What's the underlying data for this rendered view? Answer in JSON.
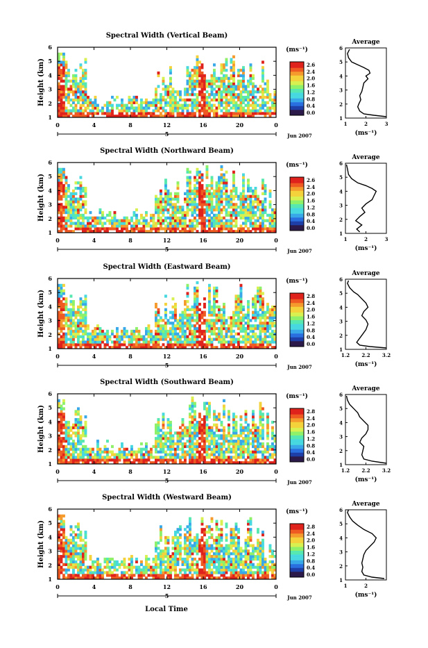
{
  "figure": {
    "time_axis_label": "Local Time",
    "cbar_unit": "(ms⁻¹)",
    "day_label": "5",
    "month_label": "Jun 2007",
    "avg_title": "Average",
    "avg_xlabel": "(ms⁻¹)",
    "height_label": "Height (km)"
  },
  "chart_data": [
    {
      "type": "heatmap",
      "title": "Spectral Width (Vertical Beam)",
      "ylabel": "Height (km)",
      "x_ticks": [
        "0",
        "4",
        "8",
        "12",
        "16",
        "20",
        "0"
      ],
      "x_range_hours": [
        0,
        24
      ],
      "y_ticks": [
        "1",
        "2",
        "3",
        "4",
        "5",
        "6"
      ],
      "ylim": [
        1,
        6
      ],
      "colorbar_ticks": [
        "2.6",
        "2.4",
        "2.0",
        "1.6",
        "1.2",
        "0.8",
        "0.4",
        "0.0"
      ],
      "colorbar_unit": "(ms⁻¹)",
      "average": {
        "title": "Average",
        "xlabel": "(ms⁻¹)",
        "x_ticks": [
          "1",
          "2",
          "3"
        ],
        "xlim": [
          1,
          3
        ],
        "y_ticks": [
          "1",
          "2",
          "3",
          "4",
          "5",
          "6"
        ],
        "ylim": [
          1,
          6
        ],
        "profile": [
          [
            3.0,
            1.1
          ],
          [
            2.4,
            1.2
          ],
          [
            1.9,
            1.3
          ],
          [
            1.7,
            1.5
          ],
          [
            1.6,
            1.8
          ],
          [
            1.65,
            2.0
          ],
          [
            1.75,
            2.3
          ],
          [
            1.7,
            2.6
          ],
          [
            1.8,
            2.9
          ],
          [
            1.85,
            3.2
          ],
          [
            1.9,
            3.5
          ],
          [
            2.1,
            3.8
          ],
          [
            2.0,
            4.0
          ],
          [
            2.2,
            4.2
          ],
          [
            2.15,
            4.4
          ],
          [
            1.9,
            4.6
          ],
          [
            1.6,
            4.8
          ],
          [
            1.3,
            5.0
          ],
          [
            1.15,
            5.3
          ],
          [
            1.1,
            5.6
          ],
          [
            1.2,
            5.9
          ]
        ]
      }
    },
    {
      "type": "heatmap",
      "title": "Spectral Width (Northward Beam)",
      "ylabel": "Height (km)",
      "x_ticks": [
        "0",
        "4",
        "8",
        "12",
        "16",
        "20",
        "0"
      ],
      "x_range_hours": [
        0,
        24
      ],
      "y_ticks": [
        "1",
        "2",
        "3",
        "4",
        "5",
        "6"
      ],
      "ylim": [
        1,
        6
      ],
      "colorbar_ticks": [
        "2.6",
        "2.4",
        "2.0",
        "1.6",
        "1.2",
        "0.8",
        "0.4",
        "0.0"
      ],
      "colorbar_unit": "(ms⁻¹)",
      "average": {
        "title": "Average",
        "xlabel": "(ms⁻¹)",
        "x_ticks": [
          "1",
          "2",
          "3"
        ],
        "xlim": [
          1,
          3
        ],
        "y_ticks": [
          "1",
          "2",
          "3",
          "4",
          "5",
          "6"
        ],
        "ylim": [
          1,
          6
        ],
        "profile": [
          [
            1.7,
            1.1
          ],
          [
            1.55,
            1.3
          ],
          [
            1.8,
            1.6
          ],
          [
            1.5,
            1.9
          ],
          [
            1.7,
            2.2
          ],
          [
            1.95,
            2.5
          ],
          [
            1.8,
            2.8
          ],
          [
            2.0,
            3.1
          ],
          [
            2.3,
            3.4
          ],
          [
            2.4,
            3.7
          ],
          [
            2.5,
            4.0
          ],
          [
            2.3,
            4.2
          ],
          [
            2.0,
            4.4
          ],
          [
            1.6,
            4.6
          ],
          [
            1.3,
            4.9
          ],
          [
            1.15,
            5.2
          ],
          [
            1.1,
            5.6
          ],
          [
            1.05,
            5.9
          ]
        ]
      }
    },
    {
      "type": "heatmap",
      "title": "Spectral Width (Eastward Beam)",
      "ylabel": "Height (km)",
      "x_ticks": [
        "0",
        "4",
        "8",
        "12",
        "16",
        "20",
        "0"
      ],
      "x_range_hours": [
        0,
        24
      ],
      "y_ticks": [
        "1",
        "2",
        "3",
        "4",
        "5",
        "6"
      ],
      "ylim": [
        1,
        6
      ],
      "colorbar_ticks": [
        "2.8",
        "2.4",
        "2.0",
        "1.6",
        "1.2",
        "0.8",
        "0.4",
        "0.0"
      ],
      "colorbar_unit": "(ms⁻¹)",
      "average": {
        "title": "Average",
        "xlabel": "(ms⁻¹)",
        "x_ticks": [
          "1.2",
          "2.2",
          "3.2"
        ],
        "xlim": [
          1.2,
          3.2
        ],
        "y_ticks": [
          "1",
          "2",
          "3",
          "4",
          "5",
          "6"
        ],
        "ylim": [
          1,
          6
        ],
        "profile": [
          [
            3.2,
            1.1
          ],
          [
            2.4,
            1.2
          ],
          [
            1.9,
            1.3
          ],
          [
            1.75,
            1.5
          ],
          [
            1.9,
            1.8
          ],
          [
            2.0,
            2.0
          ],
          [
            2.2,
            2.4
          ],
          [
            2.3,
            2.8
          ],
          [
            2.2,
            3.1
          ],
          [
            2.0,
            3.4
          ],
          [
            2.1,
            3.7
          ],
          [
            2.3,
            4.0
          ],
          [
            2.2,
            4.3
          ],
          [
            2.0,
            4.6
          ],
          [
            1.8,
            4.9
          ],
          [
            1.6,
            5.1
          ],
          [
            1.4,
            5.4
          ],
          [
            1.3,
            5.7
          ],
          [
            1.35,
            5.9
          ]
        ]
      }
    },
    {
      "type": "heatmap",
      "title": "Spectral Width (Southward Beam)",
      "ylabel": "Height (km)",
      "x_ticks": [
        "0",
        "4",
        "8",
        "12",
        "16",
        "20",
        "0"
      ],
      "x_range_hours": [
        0,
        24
      ],
      "y_ticks": [
        "1",
        "2",
        "3",
        "4",
        "5",
        "6"
      ],
      "ylim": [
        1,
        6
      ],
      "colorbar_ticks": [
        "2.8",
        "2.4",
        "2.0",
        "1.6",
        "1.2",
        "0.8",
        "0.4",
        "0.0"
      ],
      "colorbar_unit": "(ms⁻¹)",
      "average": {
        "title": "Average",
        "xlabel": "(ms⁻¹)",
        "x_ticks": [
          "1.2",
          "2.2",
          "3.2"
        ],
        "xlim": [
          1.2,
          3.2
        ],
        "y_ticks": [
          "1",
          "2",
          "3",
          "4",
          "5",
          "6"
        ],
        "ylim": [
          1,
          6
        ],
        "profile": [
          [
            3.2,
            1.1
          ],
          [
            2.5,
            1.25
          ],
          [
            2.1,
            1.4
          ],
          [
            2.0,
            1.7
          ],
          [
            2.05,
            2.0
          ],
          [
            2.1,
            2.3
          ],
          [
            1.9,
            2.6
          ],
          [
            2.0,
            2.9
          ],
          [
            2.2,
            3.2
          ],
          [
            2.3,
            3.5
          ],
          [
            2.3,
            3.8
          ],
          [
            2.1,
            4.1
          ],
          [
            1.9,
            4.4
          ],
          [
            1.8,
            4.7
          ],
          [
            1.6,
            5.0
          ],
          [
            1.4,
            5.3
          ],
          [
            1.3,
            5.6
          ],
          [
            1.25,
            5.9
          ]
        ]
      }
    },
    {
      "type": "heatmap",
      "title": "Spectral Width (Westward Beam)",
      "ylabel": "Height (km)",
      "x_ticks": [
        "0",
        "4",
        "8",
        "12",
        "16",
        "20",
        "0"
      ],
      "x_range_hours": [
        0,
        24
      ],
      "y_ticks": [
        "1",
        "2",
        "3",
        "4",
        "5",
        "6"
      ],
      "ylim": [
        1,
        6
      ],
      "colorbar_ticks": [
        "2.8",
        "2.4",
        "2.0",
        "1.6",
        "1.2",
        "0.8",
        "0.4",
        "0.0"
      ],
      "colorbar_unit": "(ms⁻¹)",
      "average": {
        "title": "Average",
        "xlabel": "(ms⁻¹)",
        "x_ticks": [
          "1",
          "2"
        ],
        "xlim": [
          1,
          3
        ],
        "y_ticks": [
          "1",
          "2",
          "3",
          "4",
          "5",
          "6"
        ],
        "ylim": [
          1,
          6
        ],
        "profile": [
          [
            2.9,
            1.1
          ],
          [
            2.3,
            1.2
          ],
          [
            1.9,
            1.35
          ],
          [
            1.8,
            1.6
          ],
          [
            1.85,
            1.9
          ],
          [
            1.8,
            2.2
          ],
          [
            1.85,
            2.5
          ],
          [
            1.9,
            2.8
          ],
          [
            2.0,
            3.1
          ],
          [
            2.2,
            3.4
          ],
          [
            2.4,
            3.7
          ],
          [
            2.5,
            4.0
          ],
          [
            2.3,
            4.3
          ],
          [
            1.9,
            4.6
          ],
          [
            1.6,
            4.9
          ],
          [
            1.35,
            5.2
          ],
          [
            1.2,
            5.5
          ],
          [
            1.1,
            5.8
          ],
          [
            1.15,
            6.0
          ]
        ]
      }
    }
  ]
}
